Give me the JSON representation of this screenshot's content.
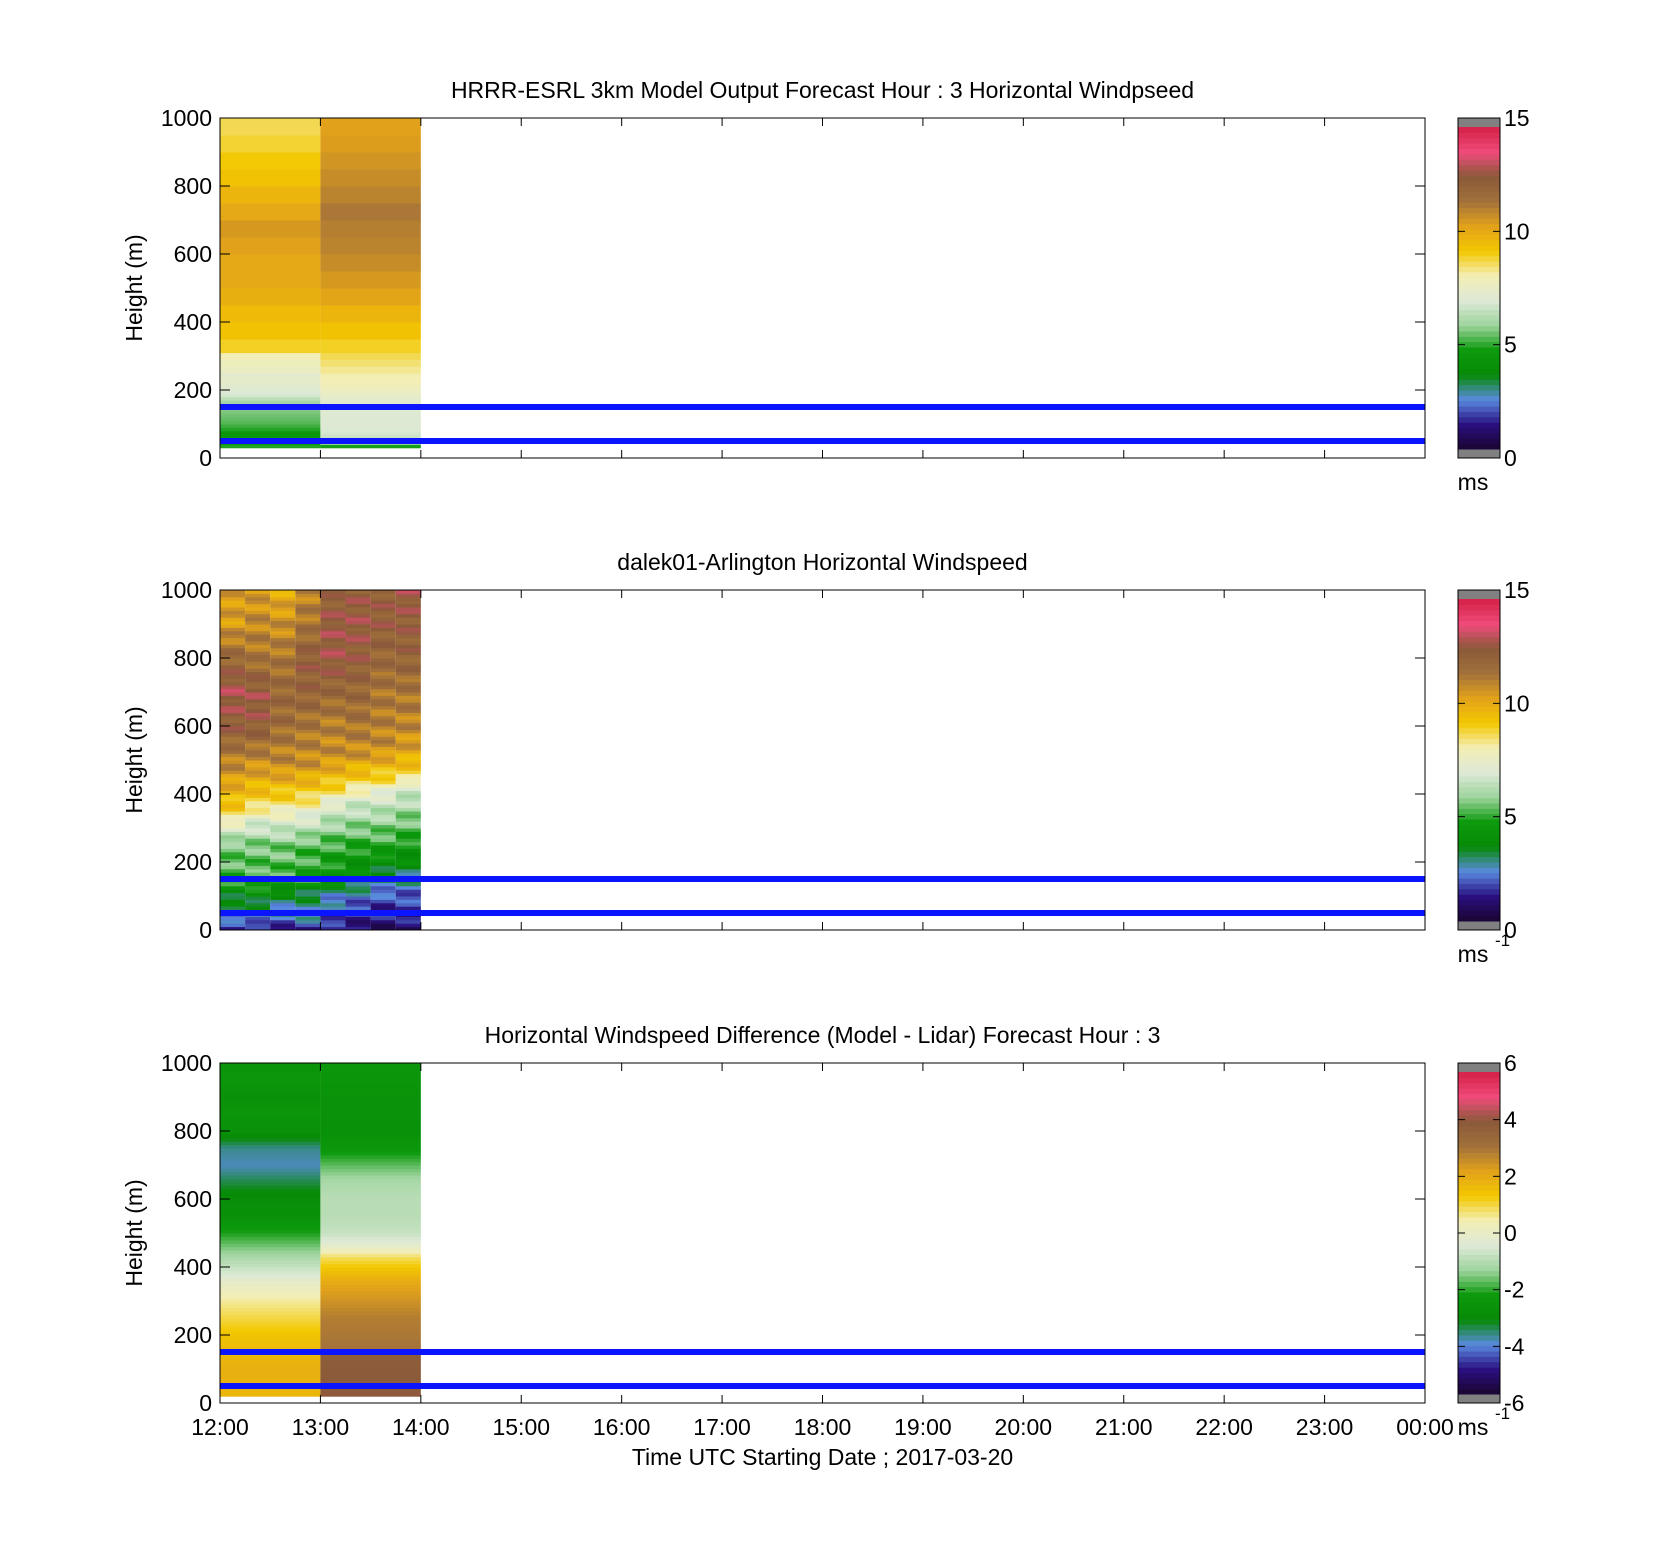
{
  "figure": {
    "colors": {
      "bands": "#0a14ff",
      "axis": "#000000",
      "nan": "#808080"
    },
    "colormap_stops": [
      "#1a0530",
      "#2a0f80",
      "#5a8ae0",
      "#078a07",
      "#0c9a0c",
      "#9ed49e",
      "#dde9d6",
      "#f3eeb4",
      "#f3c800",
      "#e2a21a",
      "#a2713a",
      "#8a5a3a",
      "#f04a7a",
      "#d42048"
    ]
  },
  "chart_data": [
    {
      "type": "heatmap",
      "title": "HRRR-ESRL 3km Model Output   Forecast Hour : 3 Horizontal Windpseed",
      "ylabel": "Height (m)",
      "xlabel": "",
      "ylim": [
        0,
        1000
      ],
      "yticks": [
        "0",
        "200",
        "400",
        "600",
        "800",
        "1000"
      ],
      "xtick_labels": [],
      "colorbar": {
        "range": [
          0,
          15
        ],
        "ticks": [
          "0",
          "5",
          "10",
          "15"
        ],
        "unit": "ms",
        "unit_exp": ""
      },
      "bands_height_m": [
        50,
        150
      ],
      "columns": [
        {
          "start": "12:00",
          "end": "13:00",
          "cells": [
            [
              30,
              4.8
            ],
            [
              40,
              4.2
            ],
            [
              50,
              4.6
            ],
            [
              60,
              4.5
            ],
            [
              70,
              4.3
            ],
            [
              80,
              4.8
            ],
            [
              90,
              5.0
            ],
            [
              100,
              5.2
            ],
            [
              110,
              5.3
            ],
            [
              120,
              5.4
            ],
            [
              130,
              5.5
            ],
            [
              140,
              5.6
            ],
            [
              150,
              5.7
            ],
            [
              160,
              5.9
            ],
            [
              170,
              6.3
            ],
            [
              180,
              6.8
            ],
            [
              190,
              7.0
            ],
            [
              200,
              7.1
            ],
            [
              210,
              7.2
            ],
            [
              220,
              7.3
            ],
            [
              230,
              7.3
            ],
            [
              240,
              7.2
            ],
            [
              250,
              7.6
            ],
            [
              270,
              7.8
            ],
            [
              290,
              8.0
            ],
            [
              310,
              9.0
            ],
            [
              350,
              9.4
            ],
            [
              400,
              9.6
            ],
            [
              450,
              10.0
            ],
            [
              500,
              10.2
            ],
            [
              550,
              10.2
            ],
            [
              600,
              10.4
            ],
            [
              650,
              10.6
            ],
            [
              700,
              10.2
            ],
            [
              750,
              9.8
            ],
            [
              800,
              9.4
            ],
            [
              850,
              9.2
            ],
            [
              900,
              8.9
            ],
            [
              950,
              8.7
            ]
          ]
        },
        {
          "start": "13:00",
          "end": "14:00",
          "cells": [
            [
              30,
              4.7
            ],
            [
              40,
              5.8
            ],
            [
              50,
              6.2
            ],
            [
              60,
              6.6
            ],
            [
              70,
              6.8
            ],
            [
              80,
              6.9
            ],
            [
              90,
              7.0
            ],
            [
              100,
              7.0
            ],
            [
              110,
              7.0
            ],
            [
              120,
              7.0
            ],
            [
              130,
              7.1
            ],
            [
              140,
              7.1
            ],
            [
              150,
              7.2
            ],
            [
              160,
              7.2
            ],
            [
              170,
              7.3
            ],
            [
              180,
              7.4
            ],
            [
              190,
              7.6
            ],
            [
              200,
              7.8
            ],
            [
              210,
              7.9
            ],
            [
              220,
              8.0
            ],
            [
              230,
              8.0
            ],
            [
              240,
              8.1
            ],
            [
              250,
              8.3
            ],
            [
              270,
              8.5
            ],
            [
              290,
              8.7
            ],
            [
              310,
              9.0
            ],
            [
              350,
              9.4
            ],
            [
              400,
              9.8
            ],
            [
              450,
              10.3
            ],
            [
              500,
              10.6
            ],
            [
              550,
              10.9
            ],
            [
              600,
              11.1
            ],
            [
              650,
              11.2
            ],
            [
              700,
              11.4
            ],
            [
              750,
              11.1
            ],
            [
              800,
              10.9
            ],
            [
              850,
              10.7
            ],
            [
              900,
              10.5
            ],
            [
              950,
              10.4
            ]
          ]
        }
      ]
    },
    {
      "type": "heatmap",
      "title": "dalek01-Arlington  Horizontal Windspeed",
      "ylabel": "Height (m)",
      "xlabel": "",
      "ylim": [
        0,
        1000
      ],
      "yticks": [
        "0",
        "200",
        "400",
        "600",
        "800",
        "1000"
      ],
      "xtick_labels": [],
      "colorbar": {
        "range": [
          0,
          15
        ],
        "ticks": [
          "0",
          "5",
          "10",
          "15"
        ],
        "unit": "ms",
        "unit_exp": "-1"
      },
      "bands_height_m": [
        50,
        150
      ],
      "column_minutes": 15,
      "profiles": [
        [
          [
            0,
            1.0
          ],
          [
            40,
            2.5
          ],
          [
            100,
            3.5
          ],
          [
            150,
            5.0
          ],
          [
            250,
            5.5
          ],
          [
            300,
            7.0
          ],
          [
            350,
            9.0
          ],
          [
            450,
            10.5
          ],
          [
            600,
            12.5
          ],
          [
            700,
            13.0
          ],
          [
            800,
            12.0
          ],
          [
            900,
            10.5
          ],
          [
            1000,
            10.5
          ]
        ],
        [
          [
            0,
            1.0
          ],
          [
            40,
            2.5
          ],
          [
            100,
            3.8
          ],
          [
            150,
            5.0
          ],
          [
            250,
            5.5
          ],
          [
            320,
            7.0
          ],
          [
            380,
            9.0
          ],
          [
            470,
            10.5
          ],
          [
            600,
            12.5
          ],
          [
            700,
            12.8
          ],
          [
            800,
            11.5
          ],
          [
            900,
            11.0
          ],
          [
            1000,
            10.5
          ]
        ],
        [
          [
            0,
            1.2
          ],
          [
            40,
            2.2
          ],
          [
            100,
            3.2
          ],
          [
            150,
            5.0
          ],
          [
            250,
            5.5
          ],
          [
            320,
            7.0
          ],
          [
            390,
            9.0
          ],
          [
            480,
            10.8
          ],
          [
            600,
            11.8
          ],
          [
            700,
            12.0
          ],
          [
            800,
            11.5
          ],
          [
            900,
            10.8
          ],
          [
            1000,
            10.0
          ]
        ],
        [
          [
            0,
            1.5
          ],
          [
            40,
            2.5
          ],
          [
            100,
            3.0
          ],
          [
            150,
            4.8
          ],
          [
            250,
            5.2
          ],
          [
            330,
            7.0
          ],
          [
            400,
            9.0
          ],
          [
            490,
            10.8
          ],
          [
            600,
            11.5
          ],
          [
            700,
            12.2
          ],
          [
            800,
            12.5
          ],
          [
            900,
            11.5
          ],
          [
            1000,
            11.0
          ]
        ],
        [
          [
            0,
            1.0
          ],
          [
            40,
            1.8
          ],
          [
            100,
            2.5
          ],
          [
            150,
            4.2
          ],
          [
            250,
            5.0
          ],
          [
            360,
            6.8
          ],
          [
            420,
            9.0
          ],
          [
            510,
            10.8
          ],
          [
            600,
            11.2
          ],
          [
            700,
            12.0
          ],
          [
            800,
            12.8
          ],
          [
            900,
            12.8
          ],
          [
            1000,
            12.2
          ]
        ],
        [
          [
            0,
            0.8
          ],
          [
            40,
            1.5
          ],
          [
            100,
            2.2
          ],
          [
            150,
            3.5
          ],
          [
            250,
            4.8
          ],
          [
            380,
            6.8
          ],
          [
            440,
            9.0
          ],
          [
            520,
            10.8
          ],
          [
            600,
            11.5
          ],
          [
            700,
            12.0
          ],
          [
            800,
            12.5
          ],
          [
            900,
            12.8
          ],
          [
            1000,
            12.5
          ]
        ],
        [
          [
            0,
            0.8
          ],
          [
            40,
            1.2
          ],
          [
            100,
            1.8
          ],
          [
            150,
            3.0
          ],
          [
            250,
            4.8
          ],
          [
            390,
            6.8
          ],
          [
            450,
            9.0
          ],
          [
            530,
            10.8
          ],
          [
            600,
            11.2
          ],
          [
            700,
            11.5
          ],
          [
            800,
            12.0
          ],
          [
            900,
            12.5
          ],
          [
            1000,
            12.5
          ]
        ],
        [
          [
            0,
            0.8
          ],
          [
            40,
            1.2
          ],
          [
            100,
            1.8
          ],
          [
            150,
            2.8
          ],
          [
            250,
            4.5
          ],
          [
            420,
            6.8
          ],
          [
            460,
            9.0
          ],
          [
            540,
            10.5
          ],
          [
            600,
            11.0
          ],
          [
            700,
            11.5
          ],
          [
            800,
            12.2
          ],
          [
            900,
            12.5
          ],
          [
            1000,
            12.8
          ]
        ]
      ]
    },
    {
      "type": "heatmap",
      "title": "Horizontal Windspeed Difference (Model - Lidar) Forecast Hour : 3",
      "ylabel": "Height (m)",
      "xlabel": "Time UTC  Starting Date ; 2017-03-20",
      "ylim": [
        0,
        1000
      ],
      "yticks": [
        "0",
        "200",
        "400",
        "600",
        "800",
        "1000"
      ],
      "xtick_labels": [
        "12:00",
        "13:00",
        "14:00",
        "15:00",
        "16:00",
        "17:00",
        "18:00",
        "19:00",
        "20:00",
        "21:00",
        "22:00",
        "23:00",
        "00:00"
      ],
      "colorbar": {
        "range": [
          -6,
          6
        ],
        "ticks": [
          "-6",
          "-4",
          "-2",
          "0",
          "2",
          "4",
          "6"
        ],
        "unit": "ms",
        "unit_exp": "-1"
      },
      "bands_height_m": [
        50,
        150
      ],
      "columns": [
        {
          "start": "12:00",
          "end": "13:00",
          "profile": [
            [
              20,
              1.8
            ],
            [
              100,
              2.0
            ],
            [
              200,
              1.5
            ],
            [
              300,
              0.6
            ],
            [
              350,
              0.0
            ],
            [
              400,
              -0.8
            ],
            [
              450,
              -1.5
            ],
            [
              500,
              -2.2
            ],
            [
              550,
              -2.8
            ],
            [
              600,
              -3.0
            ],
            [
              650,
              -3.5
            ],
            [
              700,
              -4.0
            ],
            [
              750,
              -3.8
            ],
            [
              800,
              -2.8
            ],
            [
              850,
              -2.6
            ],
            [
              900,
              -2.8
            ],
            [
              950,
              -2.5
            ],
            [
              1000,
              -2.7
            ]
          ]
        },
        {
          "start": "13:00",
          "end": "14:00",
          "profile": [
            [
              20,
              4.2
            ],
            [
              150,
              4.0
            ],
            [
              160,
              3.2
            ],
            [
              250,
              3.0
            ],
            [
              300,
              2.6
            ],
            [
              350,
              2.2
            ],
            [
              400,
              1.4
            ],
            [
              430,
              0.9
            ],
            [
              450,
              0.2
            ],
            [
              470,
              -0.3
            ],
            [
              500,
              -0.8
            ],
            [
              550,
              -1.0
            ],
            [
              600,
              -1.0
            ],
            [
              650,
              -1.2
            ],
            [
              700,
              -1.8
            ],
            [
              750,
              -2.5
            ],
            [
              800,
              -2.8
            ],
            [
              900,
              -2.7
            ],
            [
              1000,
              -2.5
            ]
          ]
        }
      ]
    }
  ]
}
